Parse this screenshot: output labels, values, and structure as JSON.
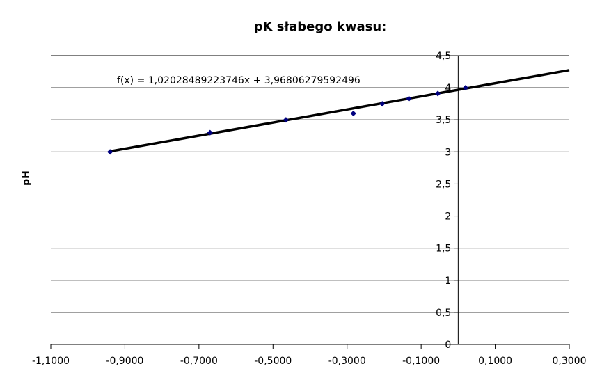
{
  "chart_data": {
    "type": "scatter",
    "title": "pK słabego kwasu:",
    "xlabel": "",
    "ylabel": "pH",
    "xlim": [
      -1.1,
      0.3
    ],
    "ylim": [
      0,
      4.5
    ],
    "x_ticks": [
      -1.1,
      -0.9,
      -0.7,
      -0.5,
      -0.3,
      -0.1,
      0.1,
      0.3
    ],
    "x_tick_labels": [
      "-1,1000",
      "-0,9000",
      "-0,7000",
      "-0,5000",
      "-0,3000",
      "-0,1000",
      "0,1000",
      "0,3000"
    ],
    "y_ticks": [
      0,
      0.5,
      1,
      1.5,
      2,
      2.5,
      3,
      3.5,
      4,
      4.5
    ],
    "y_tick_labels": [
      "0",
      "0,5",
      "1",
      "1,5",
      "2",
      "2,5",
      "3",
      "3,5",
      "4",
      "4,5"
    ],
    "grid": "horizontal",
    "legend": "none",
    "series": [
      {
        "x": [
          -0.94,
          -0.67,
          -0.465,
          -0.283,
          -0.205,
          -0.133,
          -0.055,
          0.02
        ],
        "y": [
          3.0,
          3.3,
          3.5,
          3.6,
          3.75,
          3.83,
          3.91,
          4.0
        ],
        "color": "#00007f"
      }
    ],
    "trendline": {
      "slope": 1.02028489223746,
      "intercept": 3.96806279592496,
      "x_range": [
        -0.94,
        0.3
      ],
      "equation_label": "f(x) = 1,02028489223746x + 3,96806279592496",
      "color": "#000000"
    }
  }
}
